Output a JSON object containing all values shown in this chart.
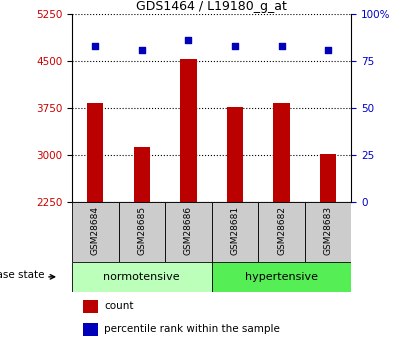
{
  "title": "GDS1464 / L19180_g_at",
  "samples": [
    "GSM28684",
    "GSM28685",
    "GSM28686",
    "GSM28681",
    "GSM28682",
    "GSM28683"
  ],
  "counts": [
    3820,
    3130,
    4530,
    3760,
    3820,
    3010
  ],
  "percentile_ranks": [
    83,
    81,
    86,
    83,
    83,
    81
  ],
  "ylim_left": [
    2250,
    5250
  ],
  "ylim_right": [
    0,
    100
  ],
  "yticks_left": [
    2250,
    3000,
    3750,
    4500,
    5250
  ],
  "yticks_right": [
    0,
    25,
    50,
    75,
    100
  ],
  "ytick_labels_right": [
    "0",
    "25",
    "50",
    "75",
    "100%"
  ],
  "bar_color": "#bb0000",
  "dot_color": "#0000bb",
  "group_labels": [
    "normotensive",
    "hypertensive"
  ],
  "group_colors": [
    "#bbffbb",
    "#55ee55"
  ],
  "disease_state_label": "disease state",
  "legend_count_label": "count",
  "legend_percentile_label": "percentile rank within the sample",
  "tick_label_color_left": "#cc0000",
  "tick_label_color_right": "#0000cc",
  "xlabel_area_color": "#cccccc"
}
